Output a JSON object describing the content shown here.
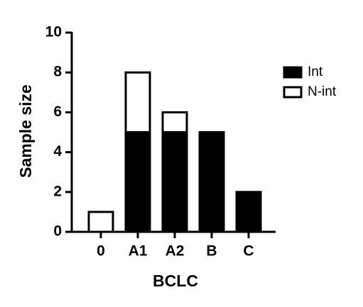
{
  "chart_data": {
    "type": "bar",
    "stacked": true,
    "x_label": "BCLC",
    "y_label": "Sample size",
    "categories": [
      "0",
      "A1",
      "A2",
      "B",
      "C"
    ],
    "series": [
      {
        "name": "Int",
        "color": "#000000",
        "values": [
          0,
          5,
          5,
          5,
          2
        ]
      },
      {
        "name": "N-int",
        "color": "#ffffff",
        "values": [
          1,
          3,
          1,
          0,
          0
        ]
      }
    ],
    "ylim": [
      0,
      10
    ],
    "yticks": [
      0,
      2,
      4,
      6,
      8,
      10
    ],
    "legend": "right"
  }
}
